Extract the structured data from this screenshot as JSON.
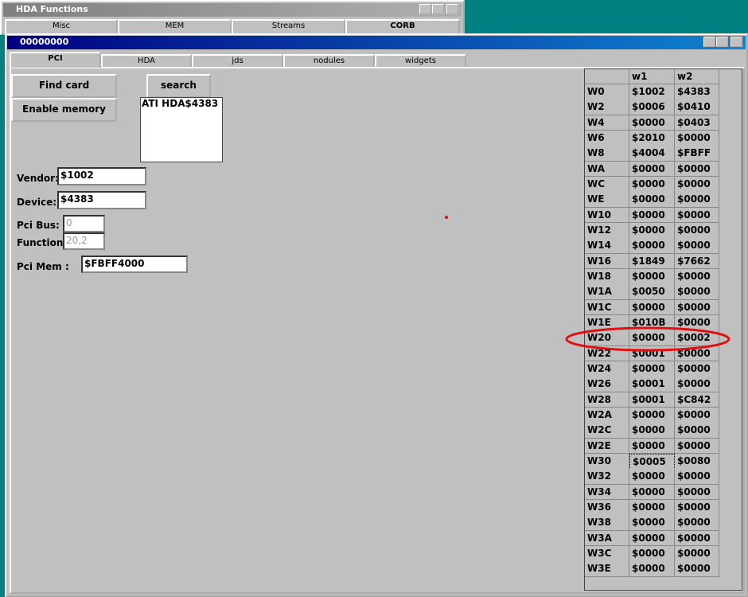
{
  "back_window": {
    "title": "HDA Functions",
    "tabs": [
      "Misc",
      "MEM",
      "Streams",
      "CORB"
    ]
  },
  "window": {
    "title": "00000000",
    "tabs": [
      "PCI",
      "HDA",
      "jds",
      "nodules",
      "widgets"
    ]
  },
  "buttons": {
    "find_card": "Find card",
    "enable_memory": "Enable memory",
    "search": "search"
  },
  "listbox": [
    "ATI HDA$4383"
  ],
  "fields": [
    {
      "label": "Vendor:",
      "value": "$1002"
    },
    {
      "label": "Device:",
      "value": "$4383"
    },
    {
      "label": "Pci Bus:",
      "value": "0"
    },
    {
      "label": "Function:",
      "value": "20,2"
    },
    {
      "label": "Pci Mem :",
      "value": "$FBFF4000"
    }
  ],
  "grid": {
    "columns": [
      "w1",
      "w2"
    ],
    "rows": [
      [
        "W0",
        "$1002",
        "$4383"
      ],
      [
        "W2",
        "$0006",
        "$0410"
      ],
      [
        "W4",
        "$0000",
        "$0403"
      ],
      [
        "W6",
        "$2010",
        "$0000"
      ],
      [
        "W8",
        "$4004",
        "$FBFF"
      ],
      [
        "WA",
        "$0000",
        "$0000"
      ],
      [
        "WC",
        "$0000",
        "$0000"
      ],
      [
        "WE",
        "$0000",
        "$0000"
      ],
      [
        "W10",
        "$0000",
        "$0000"
      ],
      [
        "W12",
        "$0000",
        "$0000"
      ],
      [
        "W14",
        "$0000",
        "$0000"
      ],
      [
        "W16",
        "$1849",
        "$7662"
      ],
      [
        "W18",
        "$0000",
        "$0000"
      ],
      [
        "W1A",
        "$0050",
        "$0000"
      ],
      [
        "W1C",
        "$0000",
        "$0000"
      ],
      [
        "W1E",
        "$010B",
        "$0000"
      ],
      [
        "W20",
        "$0000",
        "$0002"
      ],
      [
        "W22",
        "$0001",
        "$0000"
      ],
      [
        "W24",
        "$0000",
        "$0000"
      ],
      [
        "W26",
        "$0001",
        "$0000"
      ],
      [
        "W28",
        "$0001",
        "$C842"
      ],
      [
        "W2A",
        "$0000",
        "$0000"
      ],
      [
        "W2C",
        "$0000",
        "$0000"
      ],
      [
        "W2E",
        "$0000",
        "$0000"
      ],
      [
        "W30",
        "$0005",
        "$0080"
      ],
      [
        "W32",
        "$0000",
        "$0000"
      ],
      [
        "W34",
        "$0000",
        "$0000"
      ],
      [
        "W36",
        "$0000",
        "$0000"
      ],
      [
        "W38",
        "$0000",
        "$0000"
      ],
      [
        "W3A",
        "$0000",
        "$0000"
      ],
      [
        "W3C",
        "$0000",
        "$0000"
      ],
      [
        "W3E",
        "$0000",
        "$0000"
      ]
    ]
  }
}
